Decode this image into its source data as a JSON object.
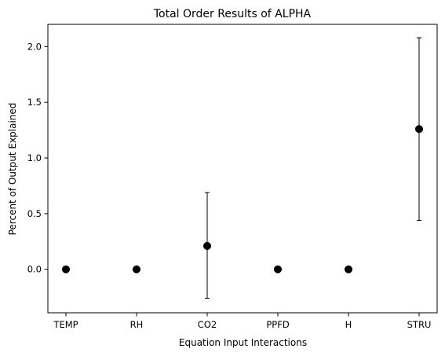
{
  "chart_data": {
    "type": "scatter",
    "title": "Total Order Results of ALPHA",
    "xlabel": "Equation Input Interactions",
    "ylabel": "Percent of Output Explained",
    "categories": [
      "TEMP",
      "RH",
      "CO2",
      "PPFD",
      "H",
      "STRU"
    ],
    "series": [
      {
        "values": [
          0.0,
          0.0,
          0.21,
          0.0,
          0.0,
          1.26
        ],
        "error_low": [
          0.0,
          0.0,
          -0.26,
          0.0,
          0.0,
          0.44
        ],
        "error_high": [
          0.0,
          0.0,
          0.69,
          0.0,
          0.0,
          2.08
        ]
      }
    ],
    "ylim": [
      -0.39,
      2.2
    ],
    "yticks": [
      0.0,
      0.5,
      1.0,
      1.5,
      2.0
    ],
    "ytick_labels": [
      "0.0",
      "0.5",
      "1.0",
      "1.5",
      "2.0"
    ],
    "grid": false,
    "colors": {
      "marker": "#000000",
      "errorbar": "#000000",
      "axes": "#000000"
    }
  }
}
